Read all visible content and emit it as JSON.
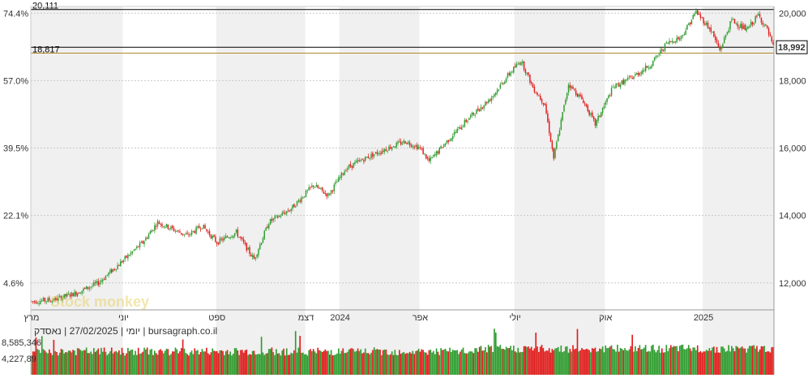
{
  "chart_data": {
    "type": "candlestick",
    "info_line": "יומי | 27/02/2025 | נאסדק | bursagraph.co.il",
    "watermark": "Stock monkey",
    "ylim": [
      11200,
      20200
    ],
    "y_ticks_right": [
      "20,000",
      "18,000",
      "16,000",
      "14,000",
      "12,000"
    ],
    "y_ticks_right_values": [
      20000,
      18000,
      16000,
      14000,
      12000
    ],
    "y_ticks_left": [
      "74.4%",
      "57.0%",
      "39.5%",
      "22.1%",
      "4.6%"
    ],
    "y_ticks_left_values": [
      20000,
      18000,
      16000,
      14000,
      12000
    ],
    "x_tick_labels": [
      "מרץ",
      "יוני",
      "ספט",
      "דצמ",
      "2024",
      "אפר",
      "יולי",
      "אוק",
      "2025"
    ],
    "x_tick_indices": [
      0,
      62,
      125,
      185,
      208,
      262,
      326,
      387,
      453
    ],
    "levels": {
      "high": "20,111",
      "mid": "18,817",
      "last": "18,992"
    },
    "levels_values": {
      "high": 20111,
      "mid": 18817,
      "last": 18992
    },
    "volume_labels": [
      "8,585,346",
      "4,227,89"
    ],
    "volume_max": 8585346,
    "colors": {
      "up": "#2e9c2e",
      "down": "#e01b1b",
      "band": "#f0f0f0",
      "mid_line": "#b08a28"
    },
    "series_anchors": [
      {
        "i": 0,
        "v": 11450
      },
      {
        "i": 15,
        "v": 11500
      },
      {
        "i": 30,
        "v": 11700
      },
      {
        "i": 45,
        "v": 12000
      },
      {
        "i": 60,
        "v": 12600
      },
      {
        "i": 75,
        "v": 13200
      },
      {
        "i": 85,
        "v": 13800
      },
      {
        "i": 95,
        "v": 13600
      },
      {
        "i": 105,
        "v": 13400
      },
      {
        "i": 115,
        "v": 13700
      },
      {
        "i": 125,
        "v": 13200
      },
      {
        "i": 138,
        "v": 13500
      },
      {
        "i": 150,
        "v": 12700
      },
      {
        "i": 160,
        "v": 13800
      },
      {
        "i": 175,
        "v": 14200
      },
      {
        "i": 190,
        "v": 14900
      },
      {
        "i": 200,
        "v": 14600
      },
      {
        "i": 212,
        "v": 15400
      },
      {
        "i": 225,
        "v": 15700
      },
      {
        "i": 240,
        "v": 16000
      },
      {
        "i": 252,
        "v": 16200
      },
      {
        "i": 262,
        "v": 16000
      },
      {
        "i": 268,
        "v": 15600
      },
      {
        "i": 280,
        "v": 16200
      },
      {
        "i": 295,
        "v": 16900
      },
      {
        "i": 310,
        "v": 17500
      },
      {
        "i": 322,
        "v": 18200
      },
      {
        "i": 330,
        "v": 18600
      },
      {
        "i": 338,
        "v": 17800
      },
      {
        "i": 346,
        "v": 17300
      },
      {
        "i": 352,
        "v": 15700
      },
      {
        "i": 362,
        "v": 17900
      },
      {
        "i": 372,
        "v": 17400
      },
      {
        "i": 380,
        "v": 16700
      },
      {
        "i": 392,
        "v": 17800
      },
      {
        "i": 405,
        "v": 18100
      },
      {
        "i": 418,
        "v": 18500
      },
      {
        "i": 428,
        "v": 19100
      },
      {
        "i": 438,
        "v": 19300
      },
      {
        "i": 448,
        "v": 20050
      },
      {
        "i": 458,
        "v": 19500
      },
      {
        "i": 464,
        "v": 18900
      },
      {
        "i": 472,
        "v": 19800
      },
      {
        "i": 482,
        "v": 19500
      },
      {
        "i": 490,
        "v": 19950
      },
      {
        "i": 496,
        "v": 19500
      },
      {
        "i": 500,
        "v": 18992
      }
    ]
  }
}
